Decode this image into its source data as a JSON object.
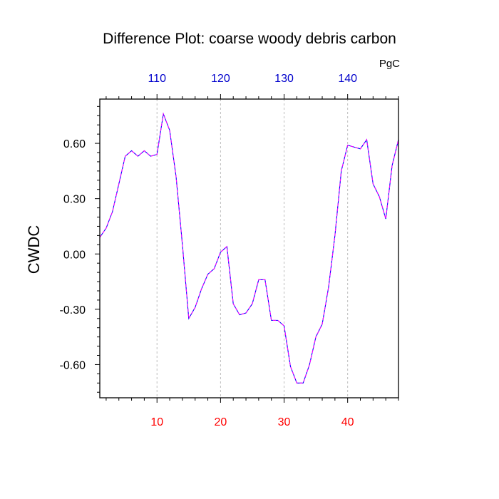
{
  "chart_data": {
    "type": "line",
    "title": "Difference Plot: coarse woody debris carbon",
    "unit_label": "PgC",
    "ylabel": "CWDC",
    "xlim": [
      1,
      48
    ],
    "ylim": [
      -0.78,
      0.84
    ],
    "yticks": [
      0.6,
      0.3,
      0.0,
      -0.3,
      -0.6
    ],
    "ytick_labels": [
      "0.60",
      "0.30",
      "0.00",
      "-0.30",
      "-0.60"
    ],
    "x_bottom_ticks": [
      10,
      20,
      30,
      40
    ],
    "x_bottom_tick_labels": [
      "10",
      "20",
      "30",
      "40"
    ],
    "x_top_ticks": [
      10,
      20,
      30,
      40
    ],
    "x_top_tick_labels": [
      "110",
      "120",
      "130",
      "140"
    ],
    "grid": "vertical-dashed",
    "colors": {
      "bottom_ticks": "#ff0000",
      "top_ticks": "#0000cc",
      "line_dash": "#ff00ff",
      "line_solid": "#0000ff",
      "grid": "#bdbdbd",
      "frame": "#000000"
    },
    "series": [
      {
        "x": [
          1,
          2,
          3,
          4,
          5,
          6,
          7,
          8,
          9,
          10,
          11,
          12,
          13,
          14,
          15,
          16,
          17,
          18,
          19,
          20,
          21,
          22,
          23,
          24,
          25,
          26,
          27,
          28,
          29,
          30,
          31,
          32,
          33,
          34,
          35,
          36,
          37,
          38,
          39,
          40,
          41,
          42,
          43,
          44,
          45,
          46,
          47,
          48
        ],
        "values": [
          0.09,
          0.14,
          0.23,
          0.38,
          0.53,
          0.56,
          0.53,
          0.56,
          0.53,
          0.54,
          0.76,
          0.67,
          0.42,
          0.05,
          -0.35,
          -0.29,
          -0.19,
          -0.11,
          -0.08,
          0.01,
          0.04,
          -0.27,
          -0.33,
          -0.32,
          -0.27,
          -0.14,
          -0.14,
          -0.36,
          -0.36,
          -0.39,
          -0.61,
          -0.7,
          -0.7,
          -0.6,
          -0.45,
          -0.38,
          -0.18,
          0.1,
          0.45,
          0.59,
          0.58,
          0.57,
          0.62,
          0.38,
          0.31,
          0.19,
          0.48,
          0.62
        ]
      }
    ]
  }
}
